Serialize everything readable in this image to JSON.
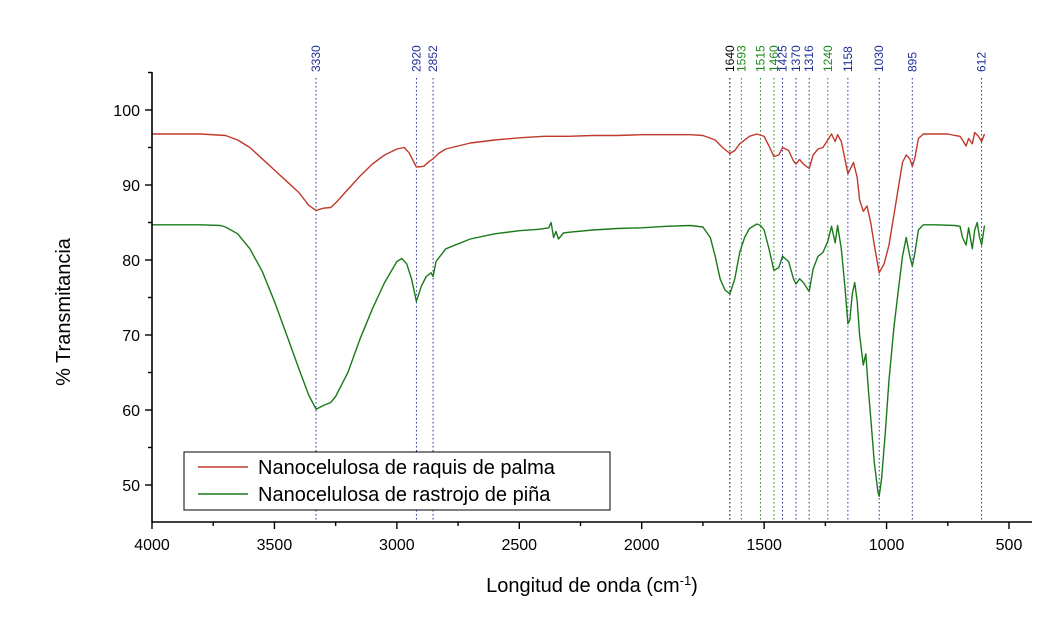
{
  "chart_data": {
    "type": "line",
    "title": "",
    "xlabel": "Longitud de onda (cm",
    "xlabel_sup": "-1",
    "xlabel_close": ")",
    "ylabel": "% Transmitancia",
    "xlim": [
      4000,
      500
    ],
    "ylim": [
      45,
      105
    ],
    "xticks": [
      "4000",
      "3500",
      "3000",
      "2500",
      "2000",
      "1500",
      "1000",
      "500"
    ],
    "yticks": [
      "50",
      "60",
      "70",
      "80",
      "90",
      "100"
    ],
    "legend_position": "bottom-left",
    "colors": {
      "peak_blue": "#1f2e9c",
      "peak_green": "#1a8a1a",
      "axis": "#000000"
    },
    "peaks": [
      {
        "label": "3330",
        "x": 3330,
        "color": "#1f2e9c"
      },
      {
        "label": "2920",
        "x": 2920,
        "color": "#1f2e9c"
      },
      {
        "label": "2852",
        "x": 2852,
        "color": "#1f2e9c"
      },
      {
        "label": "1640",
        "x": 1640,
        "color": "#000000"
      },
      {
        "label": "1593",
        "x": 1593,
        "color": "#1a8a1a"
      },
      {
        "label": "1515",
        "x": 1515,
        "color": "#1a8a1a"
      },
      {
        "label": "1460",
        "x": 1460,
        "color": "#1a8a1a"
      },
      {
        "label": "1425",
        "x": 1425,
        "color": "#1f2e9c"
      },
      {
        "label": "1370",
        "x": 1370,
        "color": "#1f2e9c"
      },
      {
        "label": "1316",
        "x": 1316,
        "color": "#1f2e9c"
      },
      {
        "label": "1240",
        "x": 1240,
        "color": "#1a8a1a"
      },
      {
        "label": "1158",
        "x": 1158,
        "color": "#1f2e9c"
      },
      {
        "label": "1030",
        "x": 1030,
        "color": "#1f2e9c"
      },
      {
        "label": "895",
        "x": 895,
        "color": "#1f2e9c"
      },
      {
        "label": "612",
        "x": 612,
        "color": "#1f2e9c"
      }
    ],
    "series": [
      {
        "name": "Nanocelulosa de raquis de palma",
        "color": "#c0392b",
        "points": [
          [
            4000,
            96.8
          ],
          [
            3800,
            96.8
          ],
          [
            3700,
            96.6
          ],
          [
            3650,
            96.0
          ],
          [
            3600,
            95.0
          ],
          [
            3550,
            93.5
          ],
          [
            3500,
            92.0
          ],
          [
            3450,
            90.5
          ],
          [
            3400,
            89.0
          ],
          [
            3360,
            87.3
          ],
          [
            3330,
            86.6
          ],
          [
            3300,
            86.9
          ],
          [
            3270,
            87.0
          ],
          [
            3250,
            87.6
          ],
          [
            3200,
            89.4
          ],
          [
            3150,
            91.2
          ],
          [
            3100,
            92.8
          ],
          [
            3050,
            94.0
          ],
          [
            3000,
            94.8
          ],
          [
            2970,
            95.0
          ],
          [
            2950,
            94.3
          ],
          [
            2920,
            92.4
          ],
          [
            2890,
            92.5
          ],
          [
            2870,
            93.1
          ],
          [
            2852,
            93.5
          ],
          [
            2830,
            94.2
          ],
          [
            2800,
            94.8
          ],
          [
            2700,
            95.6
          ],
          [
            2600,
            96.0
          ],
          [
            2500,
            96.3
          ],
          [
            2400,
            96.5
          ],
          [
            2300,
            96.5
          ],
          [
            2200,
            96.6
          ],
          [
            2100,
            96.6
          ],
          [
            2000,
            96.7
          ],
          [
            1900,
            96.7
          ],
          [
            1800,
            96.7
          ],
          [
            1750,
            96.6
          ],
          [
            1700,
            96.0
          ],
          [
            1670,
            95.0
          ],
          [
            1640,
            94.2
          ],
          [
            1620,
            94.6
          ],
          [
            1600,
            95.5
          ],
          [
            1560,
            96.5
          ],
          [
            1530,
            96.8
          ],
          [
            1500,
            96.5
          ],
          [
            1480,
            95.2
          ],
          [
            1460,
            93.8
          ],
          [
            1440,
            94.0
          ],
          [
            1425,
            95.0
          ],
          [
            1400,
            94.6
          ],
          [
            1380,
            93.2
          ],
          [
            1370,
            92.8
          ],
          [
            1355,
            93.4
          ],
          [
            1340,
            92.8
          ],
          [
            1316,
            92.2
          ],
          [
            1300,
            94.0
          ],
          [
            1280,
            94.8
          ],
          [
            1260,
            95.0
          ],
          [
            1240,
            96.0
          ],
          [
            1225,
            96.8
          ],
          [
            1210,
            95.8
          ],
          [
            1200,
            96.7
          ],
          [
            1185,
            95.8
          ],
          [
            1170,
            93.5
          ],
          [
            1158,
            91.5
          ],
          [
            1150,
            92.0
          ],
          [
            1135,
            93.0
          ],
          [
            1120,
            91.0
          ],
          [
            1110,
            88.0
          ],
          [
            1095,
            86.5
          ],
          [
            1080,
            87.2
          ],
          [
            1065,
            85.0
          ],
          [
            1050,
            82.0
          ],
          [
            1030,
            78.3
          ],
          [
            1010,
            79.5
          ],
          [
            990,
            82.0
          ],
          [
            970,
            86.0
          ],
          [
            950,
            90.0
          ],
          [
            935,
            93.0
          ],
          [
            920,
            94.0
          ],
          [
            905,
            93.5
          ],
          [
            895,
            92.5
          ],
          [
            885,
            93.5
          ],
          [
            870,
            96.2
          ],
          [
            850,
            96.8
          ],
          [
            800,
            96.8
          ],
          [
            750,
            96.8
          ],
          [
            720,
            96.6
          ],
          [
            700,
            96.5
          ],
          [
            690,
            96.0
          ],
          [
            675,
            95.2
          ],
          [
            665,
            96.2
          ],
          [
            650,
            95.5
          ],
          [
            640,
            97.0
          ],
          [
            625,
            96.5
          ],
          [
            612,
            95.8
          ],
          [
            600,
            96.8
          ]
        ]
      },
      {
        "name": "Nanocelulosa de rastrojo de piña",
        "color": "#1a7a1a",
        "points": [
          [
            4000,
            84.7
          ],
          [
            3800,
            84.7
          ],
          [
            3720,
            84.6
          ],
          [
            3700,
            84.4
          ],
          [
            3650,
            83.5
          ],
          [
            3600,
            81.5
          ],
          [
            3550,
            78.5
          ],
          [
            3500,
            74.5
          ],
          [
            3450,
            70.0
          ],
          [
            3400,
            65.5
          ],
          [
            3360,
            62.0
          ],
          [
            3330,
            60.1
          ],
          [
            3300,
            60.6
          ],
          [
            3270,
            61.0
          ],
          [
            3250,
            61.8
          ],
          [
            3200,
            65.0
          ],
          [
            3150,
            69.5
          ],
          [
            3100,
            73.5
          ],
          [
            3050,
            77.0
          ],
          [
            3000,
            79.8
          ],
          [
            2980,
            80.2
          ],
          [
            2960,
            79.5
          ],
          [
            2940,
            77.5
          ],
          [
            2920,
            74.5
          ],
          [
            2900,
            76.5
          ],
          [
            2880,
            77.8
          ],
          [
            2860,
            78.3
          ],
          [
            2852,
            77.8
          ],
          [
            2840,
            79.8
          ],
          [
            2800,
            81.5
          ],
          [
            2700,
            82.8
          ],
          [
            2600,
            83.5
          ],
          [
            2500,
            83.9
          ],
          [
            2420,
            84.1
          ],
          [
            2380,
            84.3
          ],
          [
            2370,
            85.0
          ],
          [
            2360,
            83.0
          ],
          [
            2350,
            83.8
          ],
          [
            2340,
            82.8
          ],
          [
            2320,
            83.6
          ],
          [
            2300,
            83.7
          ],
          [
            2200,
            84.0
          ],
          [
            2100,
            84.2
          ],
          [
            2000,
            84.3
          ],
          [
            1900,
            84.5
          ],
          [
            1800,
            84.6
          ],
          [
            1750,
            84.4
          ],
          [
            1720,
            83.0
          ],
          [
            1700,
            80.5
          ],
          [
            1680,
            77.5
          ],
          [
            1660,
            76.0
          ],
          [
            1640,
            75.5
          ],
          [
            1620,
            77.5
          ],
          [
            1600,
            81.0
          ],
          [
            1580,
            83.0
          ],
          [
            1560,
            84.2
          ],
          [
            1530,
            84.8
          ],
          [
            1515,
            84.6
          ],
          [
            1500,
            84.0
          ],
          [
            1480,
            81.5
          ],
          [
            1460,
            78.6
          ],
          [
            1440,
            79.0
          ],
          [
            1425,
            80.5
          ],
          [
            1400,
            79.8
          ],
          [
            1380,
            77.5
          ],
          [
            1370,
            76.8
          ],
          [
            1355,
            77.5
          ],
          [
            1340,
            77.0
          ],
          [
            1316,
            75.8
          ],
          [
            1300,
            78.8
          ],
          [
            1280,
            80.5
          ],
          [
            1260,
            81.0
          ],
          [
            1240,
            82.5
          ],
          [
            1225,
            84.5
          ],
          [
            1210,
            82.3
          ],
          [
            1200,
            84.6
          ],
          [
            1185,
            81.5
          ],
          [
            1170,
            76.5
          ],
          [
            1158,
            71.5
          ],
          [
            1150,
            72.0
          ],
          [
            1140,
            75.5
          ],
          [
            1130,
            77.0
          ],
          [
            1120,
            74.5
          ],
          [
            1110,
            70.0
          ],
          [
            1095,
            66.0
          ],
          [
            1085,
            67.5
          ],
          [
            1075,
            63.0
          ],
          [
            1065,
            59.0
          ],
          [
            1050,
            53.0
          ],
          [
            1035,
            49.0
          ],
          [
            1030,
            48.5
          ],
          [
            1020,
            51.0
          ],
          [
            1005,
            57.0
          ],
          [
            990,
            64.0
          ],
          [
            970,
            71.0
          ],
          [
            950,
            76.5
          ],
          [
            935,
            80.5
          ],
          [
            920,
            83.0
          ],
          [
            905,
            80.5
          ],
          [
            895,
            79.2
          ],
          [
            885,
            80.8
          ],
          [
            870,
            84.0
          ],
          [
            850,
            84.7
          ],
          [
            800,
            84.7
          ],
          [
            720,
            84.6
          ],
          [
            700,
            84.5
          ],
          [
            690,
            83.0
          ],
          [
            675,
            82.0
          ],
          [
            665,
            84.3
          ],
          [
            650,
            81.5
          ],
          [
            640,
            84.0
          ],
          [
            630,
            85.0
          ],
          [
            620,
            83.0
          ],
          [
            612,
            82.0
          ],
          [
            600,
            84.6
          ]
        ]
      }
    ]
  }
}
